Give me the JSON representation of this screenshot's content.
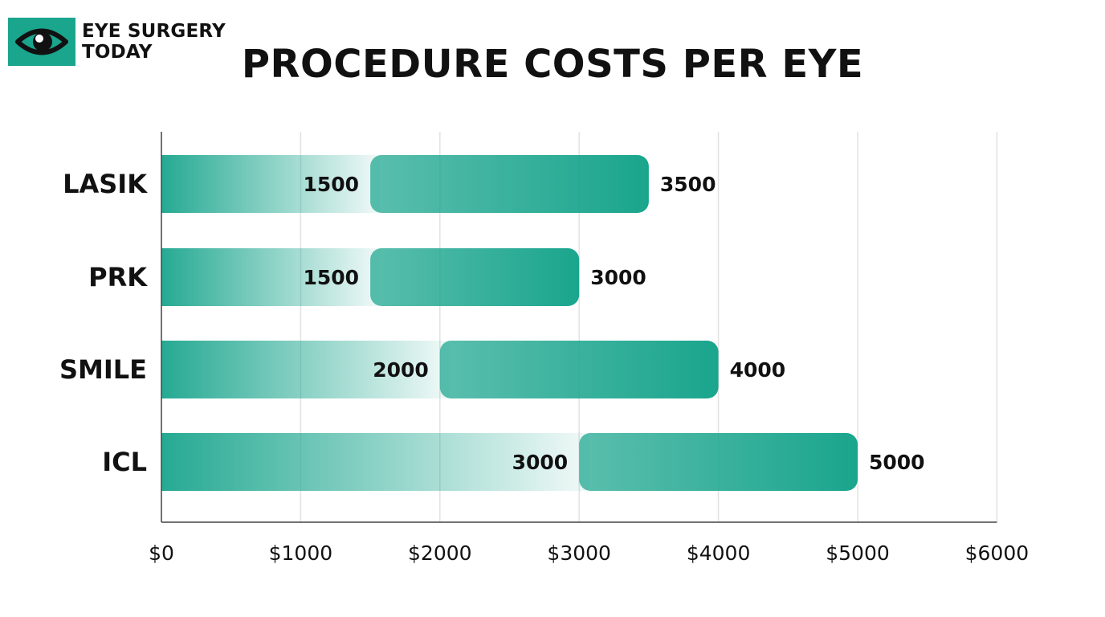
{
  "brand": {
    "line1": "EYE SURGERY",
    "line2": "TODAY",
    "logo_icon": "eye-icon",
    "color": "#1aa58d"
  },
  "chart_data": {
    "type": "bar",
    "orientation": "horizontal",
    "style": "floating range bars",
    "title": "PROCEDURE COSTS PER EYE",
    "xlabel": "",
    "ylabel": "",
    "categories": [
      "LASIK",
      "PRK",
      "SMILE",
      "ICL"
    ],
    "ranges": [
      {
        "category": "LASIK",
        "low": 1500,
        "high": 3500,
        "low_label": "1500",
        "high_label": "3500"
      },
      {
        "category": "PRK",
        "low": 1500,
        "high": 3000,
        "low_label": "1500",
        "high_label": "3000"
      },
      {
        "category": "SMILE",
        "low": 2000,
        "high": 4000,
        "low_label": "2000",
        "high_label": "4000"
      },
      {
        "category": "ICL",
        "low": 3000,
        "high": 5000,
        "low_label": "3000",
        "high_label": "5000"
      }
    ],
    "xlim": [
      0,
      6000
    ],
    "xticks": [
      0,
      1000,
      2000,
      3000,
      4000,
      5000,
      6000
    ],
    "xtick_labels": [
      "$0",
      "$1000",
      "$2000",
      "$3000",
      "$4000",
      "$5000",
      "$6000"
    ],
    "grid": "vertical",
    "legend": "none",
    "bar_color": "#1aa58d",
    "grid_color": "#e2e2e2",
    "axis_color": "#444444"
  }
}
